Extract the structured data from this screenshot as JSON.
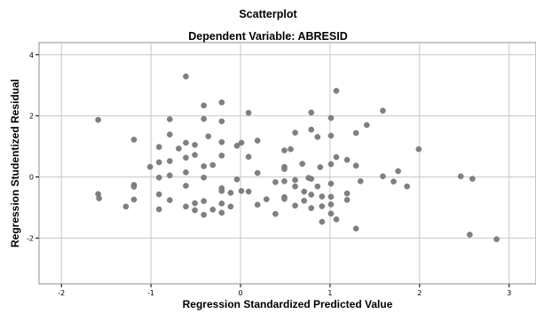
{
  "chart_data": {
    "type": "scatter",
    "title": "Scatterplot",
    "subtitle": "Dependent Variable: ABRESID",
    "xlabel": "Regression Standardized Predicted Value",
    "ylabel": "Regression Studentized Residual",
    "xlim": [
      -2.25,
      3.3
    ],
    "ylim": [
      -3.5,
      4.4
    ],
    "x_ticks": [
      -2,
      -1,
      0,
      1,
      2,
      3
    ],
    "y_ticks": [
      -2,
      0,
      2,
      4
    ],
    "grid": true,
    "marker_color": "#808080",
    "points": [
      {
        "x": -1.59,
        "y": 1.87
      },
      {
        "x": -1.59,
        "y": -0.56
      },
      {
        "x": -1.58,
        "y": -0.7
      },
      {
        "x": -1.28,
        "y": -0.97
      },
      {
        "x": -1.19,
        "y": 1.22
      },
      {
        "x": -1.19,
        "y": -0.26
      },
      {
        "x": -1.19,
        "y": -0.32
      },
      {
        "x": -1.19,
        "y": -0.74
      },
      {
        "x": -1.01,
        "y": 0.33
      },
      {
        "x": -0.91,
        "y": 0.98
      },
      {
        "x": -0.91,
        "y": 0.48
      },
      {
        "x": -0.91,
        "y": -0.02
      },
      {
        "x": -0.91,
        "y": -0.57
      },
      {
        "x": -0.91,
        "y": -1.06
      },
      {
        "x": -0.79,
        "y": 1.89
      },
      {
        "x": -0.79,
        "y": 1.39
      },
      {
        "x": -0.79,
        "y": 0.52
      },
      {
        "x": -0.79,
        "y": 0.05
      },
      {
        "x": -0.79,
        "y": -0.76
      },
      {
        "x": -0.69,
        "y": 0.93
      },
      {
        "x": -0.61,
        "y": 3.29
      },
      {
        "x": -0.61,
        "y": 1.12
      },
      {
        "x": -0.61,
        "y": 0.63
      },
      {
        "x": -0.61,
        "y": 0.15
      },
      {
        "x": -0.61,
        "y": -0.29
      },
      {
        "x": -0.61,
        "y": -0.97
      },
      {
        "x": -0.51,
        "y": 1.05
      },
      {
        "x": -0.51,
        "y": 0.72
      },
      {
        "x": -0.51,
        "y": -0.86
      },
      {
        "x": -0.51,
        "y": -1.09
      },
      {
        "x": -0.41,
        "y": 2.34
      },
      {
        "x": -0.41,
        "y": 1.9
      },
      {
        "x": -0.41,
        "y": 0.35
      },
      {
        "x": -0.41,
        "y": -0.02
      },
      {
        "x": -0.41,
        "y": -0.79
      },
      {
        "x": -0.41,
        "y": -1.24
      },
      {
        "x": -0.36,
        "y": 1.33
      },
      {
        "x": -0.31,
        "y": 0.39
      },
      {
        "x": -0.31,
        "y": -1.07
      },
      {
        "x": -0.21,
        "y": 2.44
      },
      {
        "x": -0.21,
        "y": 1.82
      },
      {
        "x": -0.21,
        "y": 1.14
      },
      {
        "x": -0.21,
        "y": 0.7
      },
      {
        "x": -0.21,
        "y": -0.37
      },
      {
        "x": -0.21,
        "y": -0.46
      },
      {
        "x": -0.21,
        "y": -0.87
      },
      {
        "x": -0.21,
        "y": -1.17
      },
      {
        "x": -0.11,
        "y": -0.52
      },
      {
        "x": -0.11,
        "y": -0.97
      },
      {
        "x": -0.04,
        "y": 1.02
      },
      {
        "x": -0.04,
        "y": -0.08
      },
      {
        "x": 0.01,
        "y": 1.12
      },
      {
        "x": 0.01,
        "y": -0.46
      },
      {
        "x": 0.09,
        "y": 2.1
      },
      {
        "x": 0.09,
        "y": 0.66
      },
      {
        "x": 0.09,
        "y": -0.48
      },
      {
        "x": 0.19,
        "y": 1.19
      },
      {
        "x": 0.19,
        "y": 0.13
      },
      {
        "x": 0.19,
        "y": -0.91
      },
      {
        "x": 0.29,
        "y": -0.73
      },
      {
        "x": 0.39,
        "y": -0.17
      },
      {
        "x": 0.39,
        "y": -1.21
      },
      {
        "x": 0.49,
        "y": 0.87
      },
      {
        "x": 0.49,
        "y": 0.33
      },
      {
        "x": 0.49,
        "y": 0.26
      },
      {
        "x": 0.49,
        "y": -0.14
      },
      {
        "x": 0.49,
        "y": -0.66
      },
      {
        "x": 0.49,
        "y": -0.72
      },
      {
        "x": 0.56,
        "y": 0.91
      },
      {
        "x": 0.61,
        "y": 1.45
      },
      {
        "x": 0.61,
        "y": -0.1
      },
      {
        "x": 0.61,
        "y": -0.31
      },
      {
        "x": 0.61,
        "y": -0.94
      },
      {
        "x": 0.69,
        "y": 0.43
      },
      {
        "x": 0.71,
        "y": -0.48
      },
      {
        "x": 0.71,
        "y": -0.78
      },
      {
        "x": 0.76,
        "y": -0.03
      },
      {
        "x": 0.79,
        "y": 2.11
      },
      {
        "x": 0.79,
        "y": 1.55
      },
      {
        "x": 0.79,
        "y": -0.06
      },
      {
        "x": 0.79,
        "y": -0.58
      },
      {
        "x": 0.79,
        "y": -1.02
      },
      {
        "x": 0.86,
        "y": 1.31
      },
      {
        "x": 0.86,
        "y": -0.31
      },
      {
        "x": 0.89,
        "y": 0.32
      },
      {
        "x": 0.91,
        "y": -0.64
      },
      {
        "x": 0.91,
        "y": -0.96
      },
      {
        "x": 0.91,
        "y": -1.47
      },
      {
        "x": 1.01,
        "y": 1.93
      },
      {
        "x": 1.01,
        "y": 1.35
      },
      {
        "x": 1.01,
        "y": 0.42
      },
      {
        "x": 1.01,
        "y": -0.22
      },
      {
        "x": 1.01,
        "y": -0.65
      },
      {
        "x": 1.01,
        "y": -0.9
      },
      {
        "x": 1.01,
        "y": -1.2
      },
      {
        "x": 1.07,
        "y": 2.82
      },
      {
        "x": 1.07,
        "y": 0.65
      },
      {
        "x": 1.07,
        "y": -1.39
      },
      {
        "x": 1.19,
        "y": 0.56
      },
      {
        "x": 1.19,
        "y": -0.54
      },
      {
        "x": 1.19,
        "y": -0.75
      },
      {
        "x": 1.29,
        "y": 1.44
      },
      {
        "x": 1.29,
        "y": 0.37
      },
      {
        "x": 1.29,
        "y": -1.69
      },
      {
        "x": 1.34,
        "y": -0.14
      },
      {
        "x": 1.41,
        "y": 1.7
      },
      {
        "x": 1.59,
        "y": 2.17
      },
      {
        "x": 1.59,
        "y": 0.02
      },
      {
        "x": 1.71,
        "y": -0.15
      },
      {
        "x": 1.76,
        "y": 0.19
      },
      {
        "x": 1.86,
        "y": -0.31
      },
      {
        "x": 1.99,
        "y": 0.91
      },
      {
        "x": 2.46,
        "y": 0.02
      },
      {
        "x": 2.56,
        "y": -1.89
      },
      {
        "x": 2.59,
        "y": -0.06
      },
      {
        "x": 2.86,
        "y": -2.04
      }
    ]
  }
}
